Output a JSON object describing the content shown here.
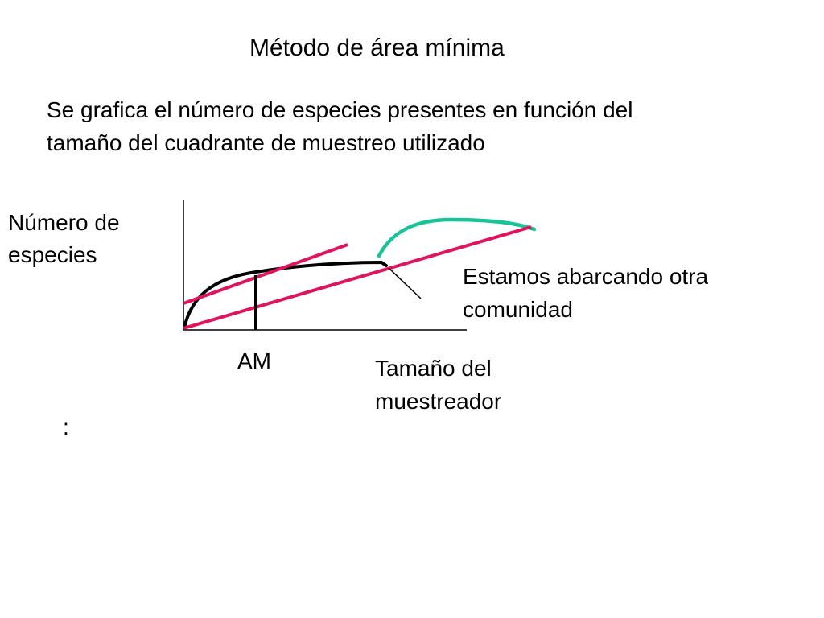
{
  "slide": {
    "title": "Método de área mínima",
    "intro_lines": [
      "Se grafica el número de especies presentes en función del",
      "tamaño del cuadrante de muestreo utilizado"
    ],
    "colon": ":"
  },
  "diagram": {
    "y_axis_label_lines": [
      "Número de",
      "especies"
    ],
    "x_axis_label_lines": [
      "Tamaño del",
      "muestreador"
    ],
    "marker_label": "AM",
    "annotation_lines": [
      "Estamos abarcando otra",
      "comunidad"
    ],
    "colors": {
      "axes": "#000000",
      "species_curve": "#000000",
      "tangent_lines": "#e0135f",
      "other_community_curve": "#19c39a",
      "pointer": "#000000"
    }
  }
}
